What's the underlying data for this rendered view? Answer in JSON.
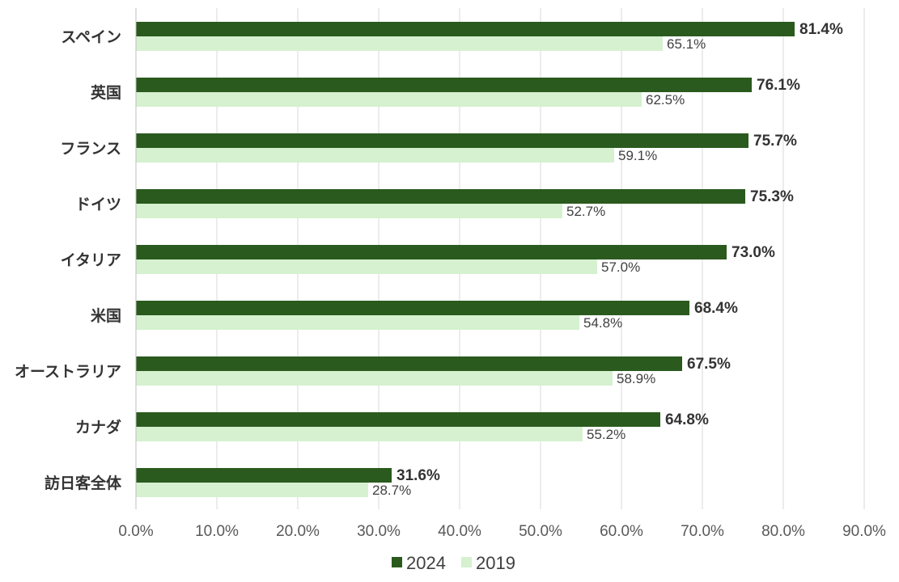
{
  "chart_data": {
    "type": "bar",
    "orientation": "horizontal",
    "categories": [
      "スペイン",
      "英国",
      "フランス",
      "ドイツ",
      "イタリア",
      "米国",
      "オーストラリア",
      "カナダ",
      "訪日客全体"
    ],
    "series": [
      {
        "name": "2024",
        "color": "#2a5a1e",
        "values": [
          81.4,
          76.1,
          75.7,
          75.3,
          73.0,
          68.4,
          67.5,
          64.8,
          31.6
        ]
      },
      {
        "name": "2019",
        "color": "#d5f1cf",
        "values": [
          65.1,
          62.5,
          59.1,
          52.7,
          57.0,
          54.8,
          58.9,
          55.2,
          28.7
        ]
      }
    ],
    "value_labels": {
      "2024": [
        "81.4%",
        "76.1%",
        "75.7%",
        "75.3%",
        "73.0%",
        "68.4%",
        "67.5%",
        "64.8%",
        "31.6%"
      ],
      "2019": [
        "65.1%",
        "62.5%",
        "59.1%",
        "52.7%",
        "57.0%",
        "54.8%",
        "58.9%",
        "55.2%",
        "28.7%"
      ]
    },
    "xlim": [
      0,
      90
    ],
    "x_ticks": [
      "0.0%",
      "10.0%",
      "20.0%",
      "30.0%",
      "40.0%",
      "50.0%",
      "60.0%",
      "70.0%",
      "80.0%",
      "90.0%"
    ],
    "grid": "vertical",
    "legend_position": "bottom-center",
    "legend": [
      "2024",
      "2019"
    ]
  }
}
